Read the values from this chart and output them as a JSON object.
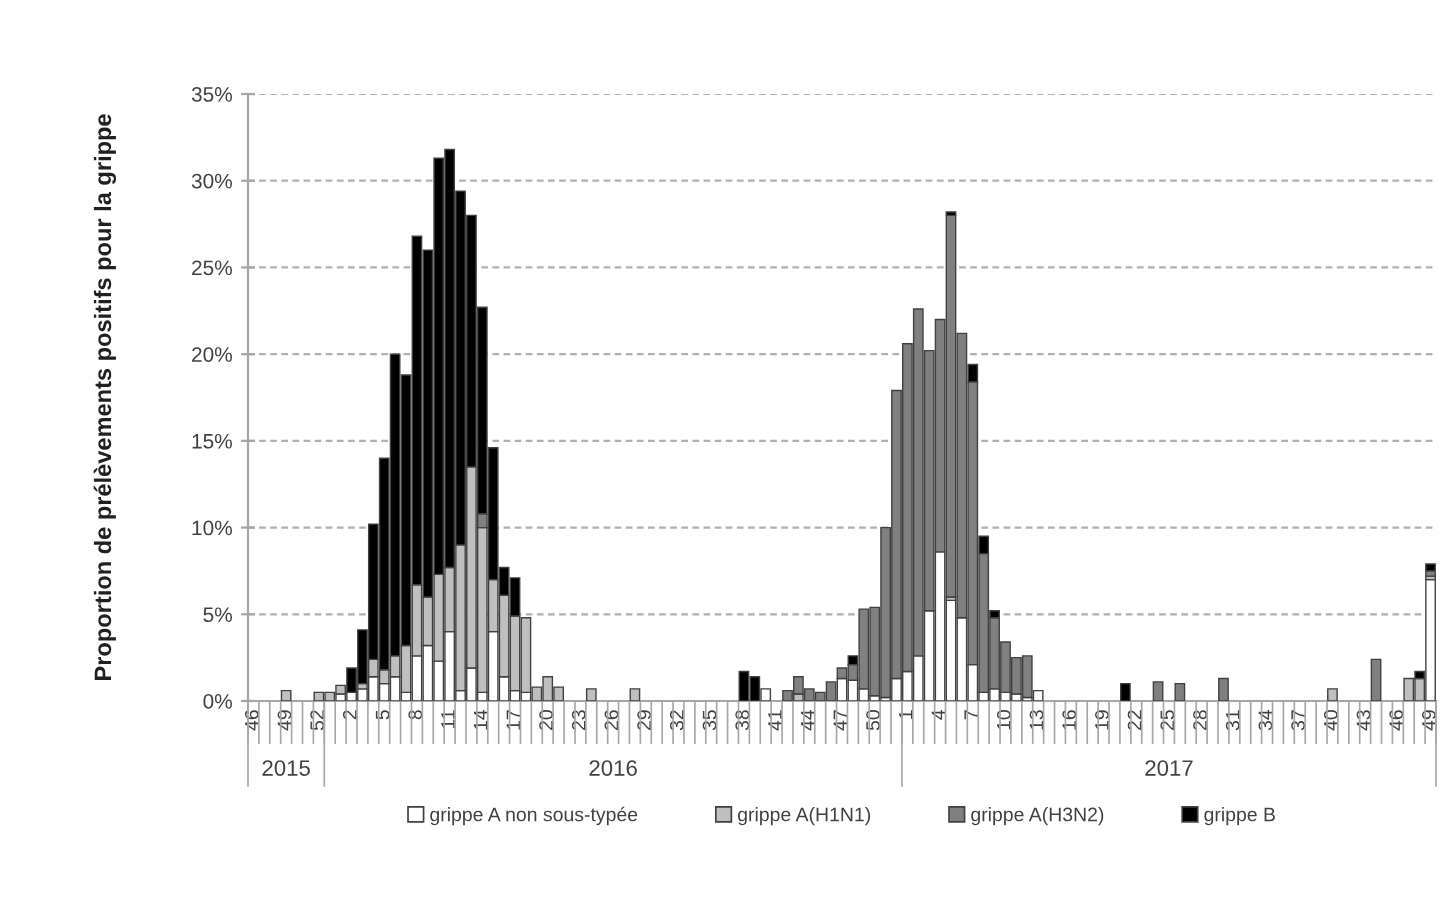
{
  "chart_data": {
    "type": "bar",
    "stacked": true,
    "ylabel": "Proportion de prélèvements positifs pour la grippe",
    "categories": [
      "46",
      null,
      null,
      "49",
      null,
      null,
      "52",
      null,
      null,
      "2",
      null,
      null,
      "5",
      null,
      null,
      "8",
      null,
      null,
      "11",
      null,
      null,
      "14",
      null,
      null,
      "17",
      null,
      null,
      "20",
      null,
      null,
      "23",
      null,
      null,
      "26",
      null,
      null,
      "29",
      null,
      null,
      "32",
      null,
      null,
      "35",
      null,
      null,
      "38",
      null,
      null,
      "41",
      null,
      null,
      "44",
      null,
      null,
      "47",
      null,
      null,
      "50",
      null,
      null,
      "1",
      null,
      null,
      "4",
      null,
      null,
      "7",
      null,
      null,
      "10",
      null,
      null,
      "13",
      null,
      null,
      "16",
      null,
      null,
      "19",
      null,
      null,
      "22",
      null,
      null,
      "25",
      null,
      null,
      "28",
      null,
      null,
      "31",
      null,
      null,
      "34",
      null,
      null,
      "37",
      null,
      null,
      "40",
      null,
      null,
      "43",
      null,
      null,
      "46",
      null,
      null,
      "49"
    ],
    "series": [
      {
        "name": "grippe A non sous-typée",
        "color": "#ffffff",
        "values": [
          0,
          0,
          0,
          0,
          0,
          0,
          0,
          0,
          0.4,
          0.5,
          0.7,
          1.4,
          1.0,
          1.4,
          0.5,
          2.6,
          3.2,
          2.3,
          4.0,
          0.6,
          1.9,
          0.5,
          4.0,
          1.4,
          0.6,
          0.5,
          0,
          0,
          0,
          0,
          0,
          0,
          0,
          0,
          0,
          0,
          0,
          0,
          0,
          0,
          0,
          0,
          0,
          0,
          0,
          0,
          0,
          0.7,
          0,
          0,
          0,
          0,
          0,
          0,
          1.3,
          1.2,
          0.7,
          0.3,
          0.2,
          1.3,
          1.7,
          2.6,
          5.2,
          8.6,
          5.8,
          4.8,
          2.1,
          0.5,
          0.7,
          0.5,
          0.4,
          0.2,
          0.6,
          0,
          0,
          0,
          0,
          0,
          0,
          0,
          0,
          0,
          0,
          0,
          0,
          0,
          0,
          0,
          0,
          0,
          0,
          0,
          0,
          0,
          0,
          0,
          0,
          0,
          0,
          0,
          0,
          0,
          0,
          0,
          0,
          0,
          0,
          0,
          7.0
        ]
      },
      {
        "name": "grippe A(H1N1)",
        "color": "#bfbfbf",
        "values": [
          0,
          0,
          0,
          0.6,
          0,
          0,
          0.5,
          0.5,
          0.5,
          0,
          0.3,
          1.0,
          0.8,
          1.2,
          2.7,
          4.1,
          2.8,
          5.0,
          3.7,
          8.4,
          11.6,
          9.5,
          3.0,
          4.7,
          4.3,
          4.3,
          0.8,
          1.4,
          0.8,
          0,
          0,
          0.7,
          0,
          0,
          0,
          0.7,
          0,
          0,
          0,
          0,
          0,
          0,
          0,
          0,
          0,
          0,
          0,
          0,
          0,
          0,
          0.4,
          0,
          0,
          0,
          0,
          0,
          0,
          0,
          0,
          0,
          0,
          0,
          0,
          0,
          0.2,
          0,
          0,
          0,
          0,
          0,
          0,
          0,
          0,
          0,
          0,
          0,
          0,
          0,
          0,
          0,
          0,
          0,
          0,
          0,
          0,
          0,
          0,
          0,
          0,
          0,
          0,
          0,
          0,
          0,
          0,
          0,
          0,
          0,
          0,
          0.7,
          0,
          0,
          0,
          0,
          0,
          0,
          1.3,
          1.3,
          0.2
        ]
      },
      {
        "name": "grippe A(H3N2)",
        "color": "#808080",
        "values": [
          0,
          0,
          0,
          0,
          0,
          0,
          0,
          0,
          0,
          0,
          0,
          0,
          0,
          0,
          0,
          0,
          0,
          0,
          0,
          0,
          0,
          0.8,
          0,
          0,
          0,
          0,
          0,
          0,
          0,
          0,
          0,
          0,
          0,
          0,
          0,
          0,
          0,
          0,
          0,
          0,
          0,
          0,
          0,
          0,
          0,
          0,
          0,
          0,
          0,
          0.6,
          1.0,
          0.7,
          0.5,
          1.1,
          0.6,
          0.9,
          4.6,
          5.1,
          9.8,
          16.6,
          18.9,
          20.0,
          15.0,
          13.4,
          22.0,
          16.4,
          16.3,
          8.0,
          4.1,
          2.9,
          2.1,
          2.4,
          0,
          0,
          0,
          0,
          0,
          0,
          0,
          0,
          0,
          0,
          0,
          1.1,
          0,
          1.0,
          0,
          0,
          0,
          1.3,
          0,
          0,
          0,
          0,
          0,
          0,
          0,
          0,
          0,
          0,
          0,
          0,
          0,
          2.4,
          0,
          0,
          0,
          0,
          0.3
        ]
      },
      {
        "name": "grippe B",
        "color": "#000000",
        "values": [
          0,
          0,
          0,
          0,
          0,
          0,
          0,
          0,
          0,
          1.4,
          3.1,
          7.8,
          12.2,
          17.4,
          15.6,
          20.1,
          20.0,
          24.0,
          24.1,
          20.4,
          14.5,
          11.9,
          7.6,
          1.6,
          2.2,
          0,
          0,
          0,
          0,
          0,
          0,
          0,
          0,
          0,
          0,
          0,
          0,
          0,
          0,
          0,
          0,
          0,
          0,
          0,
          0,
          1.7,
          1.4,
          0,
          0,
          0,
          0,
          0,
          0,
          0,
          0,
          0.5,
          0,
          0,
          0,
          0,
          0,
          0,
          0,
          0,
          0.2,
          0,
          1.0,
          1.0,
          0.4,
          0,
          0,
          0,
          0,
          0,
          0,
          0,
          0,
          0,
          0,
          0,
          1.0,
          0,
          0,
          0,
          0,
          0,
          0,
          0,
          0,
          0,
          0,
          0,
          0,
          0,
          0,
          0,
          0,
          0,
          0,
          0,
          0,
          0,
          0,
          0,
          0,
          0,
          0,
          0.4,
          0.4
        ]
      }
    ],
    "ylim": [
      0,
      35
    ],
    "yticks": [
      {
        "value": 0,
        "label": "0%"
      },
      {
        "value": 5,
        "label": "5%"
      },
      {
        "value": 10,
        "label": "10%"
      },
      {
        "value": 15,
        "label": "15%"
      },
      {
        "value": 20,
        "label": "20%"
      },
      {
        "value": 25,
        "label": "25%"
      },
      {
        "value": 30,
        "label": "30%"
      },
      {
        "value": 35,
        "label": "35%"
      }
    ],
    "grid": "y",
    "legend": "bottom",
    "annotations": [
      {
        "text": "2015",
        "x": "49"
      },
      {
        "text": "2016",
        "x": "26"
      },
      {
        "text": "2017",
        "x": "25"
      }
    ]
  }
}
